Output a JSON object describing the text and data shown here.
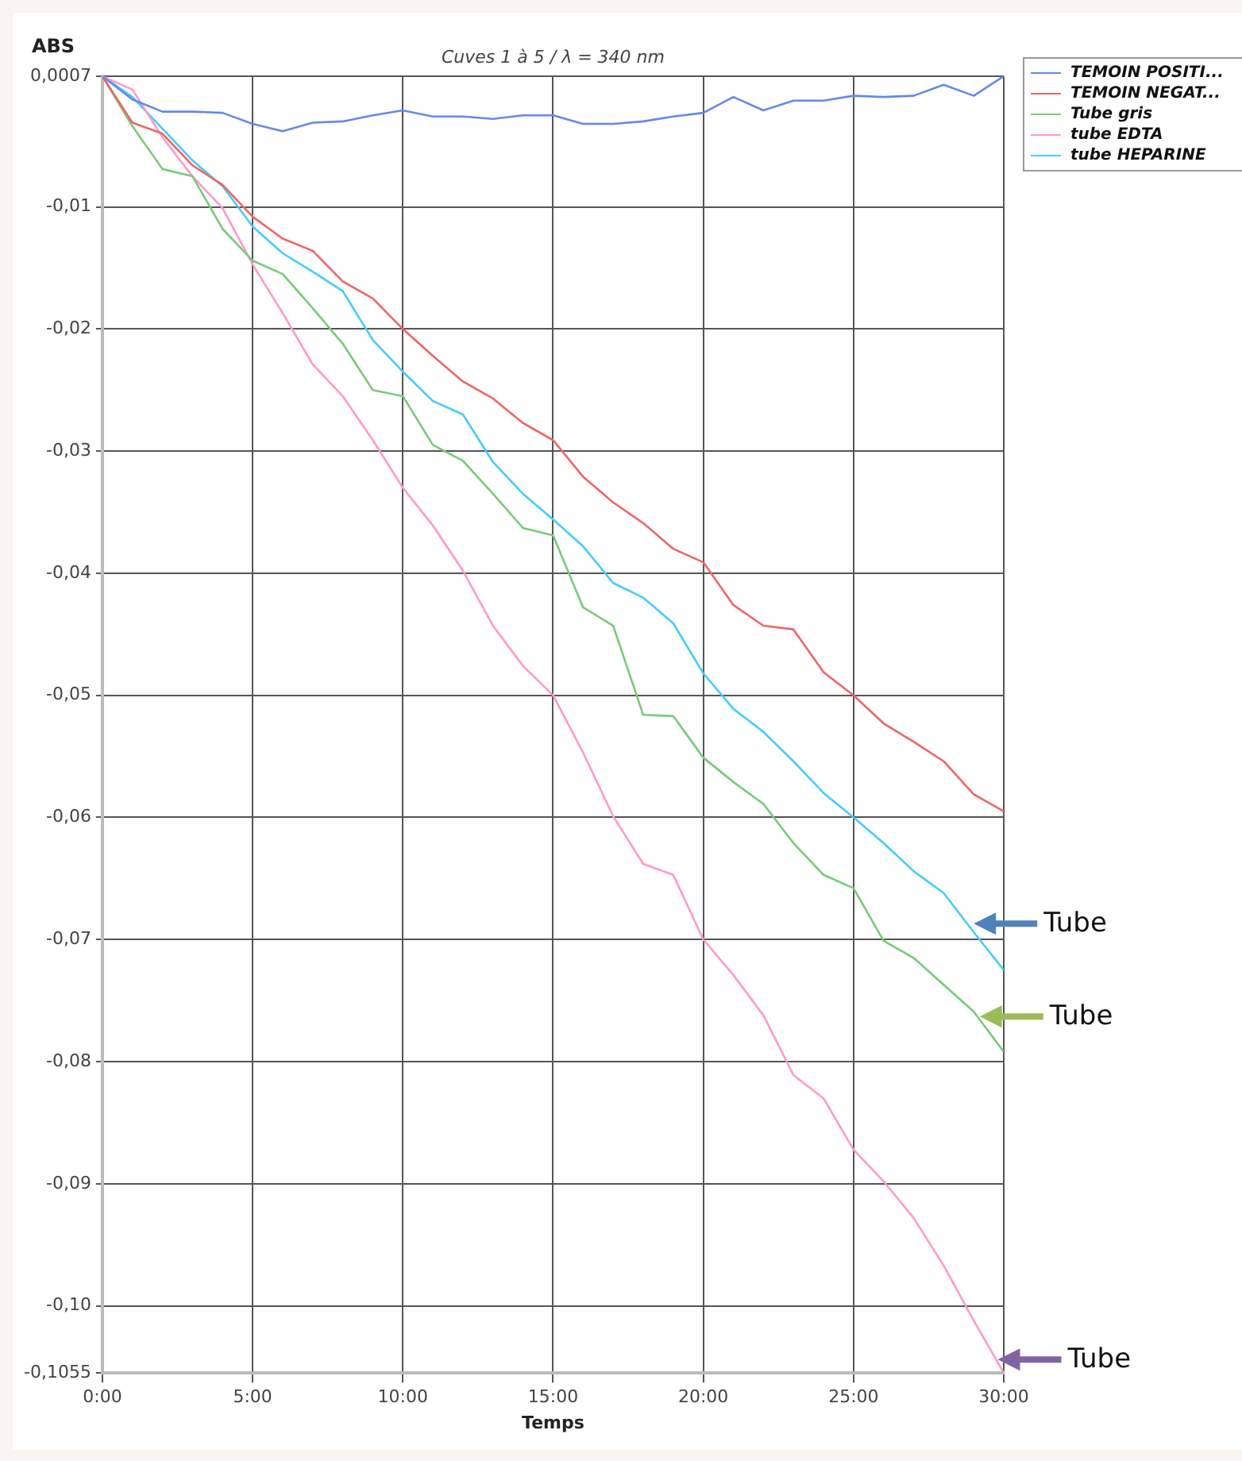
{
  "chart_data": {
    "type": "line",
    "title": "Cuves 1 à 5 / λ = 340 nm",
    "xlabel": "Temps",
    "ylabel": "ABS",
    "x": [
      0,
      1,
      2,
      3,
      4,
      5,
      6,
      7,
      8,
      9,
      10,
      11,
      12,
      13,
      14,
      15,
      16,
      17,
      18,
      19,
      20,
      21,
      22,
      23,
      24,
      25,
      26,
      27,
      28,
      29,
      30
    ],
    "series": [
      {
        "name": "TEMOIN POSITI...",
        "color": "#6688ee",
        "values": [
          0.0007,
          -0.0012,
          -0.0022,
          -0.0022,
          -0.0023,
          -0.0032,
          -0.0038,
          -0.0031,
          -0.003,
          -0.0025,
          -0.0021,
          -0.0026,
          -0.0026,
          -0.0028,
          -0.0025,
          -0.0025,
          -0.0032,
          -0.0032,
          -0.003,
          -0.0026,
          -0.0023,
          -0.001,
          -0.0021,
          -0.0013,
          -0.0013,
          -0.0009,
          -0.001,
          -0.0009,
          0.0,
          -0.0009,
          0.0007
        ]
      },
      {
        "name": "TEMOIN NEGAT...",
        "color": "#ee6666",
        "values": [
          0.0007,
          -0.0031,
          -0.004,
          -0.0066,
          -0.0082,
          -0.0108,
          -0.0126,
          -0.0136,
          -0.0161,
          -0.0175,
          -0.02,
          -0.0222,
          -0.0243,
          -0.0257,
          -0.0277,
          -0.0291,
          -0.0321,
          -0.0342,
          -0.0359,
          -0.038,
          -0.0391,
          -0.0426,
          -0.0443,
          -0.0446,
          -0.0481,
          -0.05,
          -0.0523,
          -0.0538,
          -0.0554,
          -0.0581,
          -0.0595
        ]
      },
      {
        "name": "Tube gris",
        "color": "#77cc77",
        "values": [
          0.0007,
          -0.0034,
          -0.0069,
          -0.0075,
          -0.0118,
          -0.0144,
          -0.0155,
          -0.0183,
          -0.0212,
          -0.025,
          -0.0255,
          -0.0295,
          -0.0308,
          -0.0335,
          -0.0363,
          -0.0369,
          -0.0428,
          -0.0443,
          -0.0516,
          -0.0517,
          -0.0551,
          -0.0571,
          -0.0589,
          -0.0621,
          -0.0647,
          -0.0658,
          -0.0701,
          -0.0715,
          -0.0737,
          -0.0759,
          -0.0792
        ]
      },
      {
        "name": "tube EDTA",
        "color": "#ff99cc",
        "values": [
          0.0007,
          -0.0004,
          -0.0043,
          -0.0075,
          -0.0101,
          -0.0147,
          -0.0187,
          -0.0229,
          -0.0255,
          -0.0291,
          -0.033,
          -0.0361,
          -0.0398,
          -0.0443,
          -0.0476,
          -0.05,
          -0.0547,
          -0.0599,
          -0.0638,
          -0.0647,
          -0.07,
          -0.0729,
          -0.0762,
          -0.0811,
          -0.083,
          -0.0872,
          -0.0898,
          -0.0928,
          -0.0967,
          -0.1012,
          -0.1055
        ]
      },
      {
        "name": "tube HEPARINE",
        "color": "#44ccff",
        "values": [
          0.0007,
          -0.001,
          -0.0036,
          -0.0062,
          -0.0083,
          -0.0116,
          -0.0138,
          -0.0153,
          -0.0169,
          -0.0209,
          -0.0235,
          -0.0259,
          -0.027,
          -0.0309,
          -0.0335,
          -0.0356,
          -0.0378,
          -0.0408,
          -0.042,
          -0.0441,
          -0.0482,
          -0.0511,
          -0.053,
          -0.0554,
          -0.058,
          -0.06,
          -0.0621,
          -0.0644,
          -0.0662,
          -0.0694,
          -0.0725
        ]
      }
    ],
    "xlim": [
      0,
      30
    ],
    "xticks": [
      {
        "value": 0,
        "label": "0:00"
      },
      {
        "value": 5,
        "label": "5:00"
      },
      {
        "value": 10,
        "label": "10:00"
      },
      {
        "value": 15,
        "label": "15:00"
      },
      {
        "value": 20,
        "label": "20:00"
      },
      {
        "value": 25,
        "label": "25:00"
      },
      {
        "value": 30,
        "label": "30:00"
      }
    ],
    "ylim": [
      -0.1055,
      0.0007
    ],
    "yticks": [
      {
        "value": 0.0007,
        "label": "0,0007"
      },
      {
        "value": -0.01,
        "label": "-0,01"
      },
      {
        "value": -0.02,
        "label": "-0,02"
      },
      {
        "value": -0.03,
        "label": "-0,03"
      },
      {
        "value": -0.04,
        "label": "-0,04"
      },
      {
        "value": -0.05,
        "label": "-0,05"
      },
      {
        "value": -0.06,
        "label": "-0,06"
      },
      {
        "value": -0.07,
        "label": "-0,07"
      },
      {
        "value": -0.08,
        "label": "-0,08"
      },
      {
        "value": -0.09,
        "label": "-0,09"
      },
      {
        "value": -0.1,
        "label": "-0,10"
      },
      {
        "value": -0.1055,
        "label": "-0,1055"
      }
    ],
    "annotations": [
      {
        "text": "Tube",
        "x": 29,
        "y": -0.0687
      },
      {
        "text": "Tube",
        "x": 29.2,
        "y": -0.0763
      },
      {
        "text": "Tube",
        "x": 29.8,
        "y": -0.1044
      }
    ],
    "grid": true,
    "legend": "top right",
    "marker": "none",
    "line_style": "solid"
  }
}
